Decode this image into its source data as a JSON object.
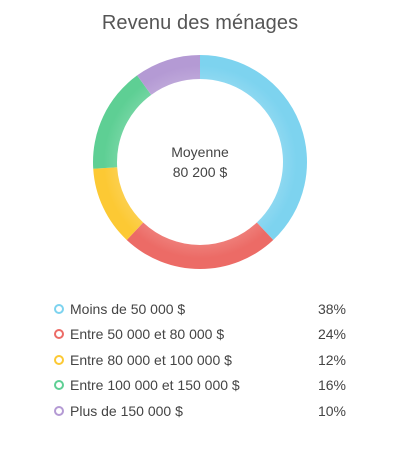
{
  "chart_data": {
    "type": "pie",
    "title": "Revenu des ménages",
    "center": {
      "label": "Moyenne",
      "value": "80 200 $"
    },
    "categories": [
      "Moins de 50 000 $",
      "Entre 50 000 et 80 000 $",
      "Entre 80 000 et 100 000 $",
      "Entre 100 000 et 150 000 $",
      "Plus de 150 000 $"
    ],
    "values": [
      38,
      24,
      12,
      16,
      10
    ],
    "value_labels": [
      "38%",
      "24%",
      "12%",
      "16%",
      "10%"
    ],
    "colors": [
      "#7dd3ef",
      "#ec6b66",
      "#fcc934",
      "#5ecf94",
      "#b49ad4"
    ],
    "legend": "bottom"
  }
}
